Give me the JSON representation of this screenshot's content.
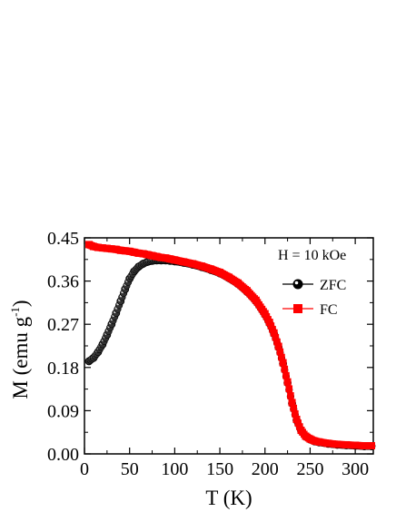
{
  "chart_data": {
    "type": "scatter",
    "xlabel": "T (K)",
    "ylabel_main": "M (emu g",
    "ylabel_sup": "-1",
    "ylabel_close": ")",
    "xlim": [
      0,
      320
    ],
    "ylim": [
      0.0,
      0.45
    ],
    "x_ticks": [
      "0",
      "50",
      "100",
      "150",
      "200",
      "250",
      "300"
    ],
    "y_ticks": [
      "0.00",
      "0.09",
      "0.18",
      "0.27",
      "0.36",
      "0.45"
    ],
    "annotation": "H = 10 kOe",
    "legend_position": "top-right",
    "series": [
      {
        "name": "ZFC",
        "color": "#000000",
        "marker": "circle",
        "x": [
          5,
          10,
          15,
          20,
          25,
          30,
          35,
          40,
          45,
          50,
          55,
          60,
          65,
          70,
          75,
          80,
          85,
          90,
          95,
          100,
          110,
          120,
          130,
          140,
          150,
          160,
          170,
          180,
          190,
          200,
          205,
          210,
          215,
          220,
          225,
          230,
          235,
          240,
          245,
          250,
          255,
          260,
          270,
          280,
          290,
          300,
          310,
          318
        ],
        "y": [
          0.193,
          0.2,
          0.212,
          0.228,
          0.248,
          0.27,
          0.293,
          0.318,
          0.343,
          0.365,
          0.38,
          0.39,
          0.396,
          0.4,
          0.402,
          0.403,
          0.403,
          0.403,
          0.402,
          0.401,
          0.398,
          0.394,
          0.389,
          0.383,
          0.376,
          0.366,
          0.354,
          0.338,
          0.318,
          0.29,
          0.272,
          0.25,
          0.222,
          0.188,
          0.148,
          0.105,
          0.07,
          0.048,
          0.036,
          0.03,
          0.026,
          0.024,
          0.021,
          0.019,
          0.018,
          0.017,
          0.016,
          0.016
        ]
      },
      {
        "name": "FC",
        "color": "#ff0000",
        "marker": "square",
        "x": [
          5,
          10,
          15,
          20,
          25,
          30,
          35,
          40,
          45,
          50,
          55,
          60,
          65,
          70,
          75,
          80,
          85,
          90,
          95,
          100,
          110,
          120,
          130,
          140,
          150,
          160,
          170,
          180,
          190,
          200,
          205,
          210,
          215,
          220,
          225,
          230,
          235,
          240,
          245,
          250,
          255,
          260,
          270,
          280,
          290,
          300,
          310,
          318
        ],
        "y": [
          0.436,
          0.432,
          0.43,
          0.429,
          0.428,
          0.427,
          0.426,
          0.424,
          0.423,
          0.422,
          0.42,
          0.418,
          0.417,
          0.415,
          0.413,
          0.411,
          0.409,
          0.408,
          0.406,
          0.404,
          0.4,
          0.396,
          0.391,
          0.385,
          0.378,
          0.368,
          0.356,
          0.34,
          0.32,
          0.292,
          0.274,
          0.252,
          0.224,
          0.19,
          0.15,
          0.107,
          0.072,
          0.049,
          0.037,
          0.031,
          0.027,
          0.025,
          0.022,
          0.02,
          0.019,
          0.018,
          0.017,
          0.017
        ]
      }
    ]
  }
}
